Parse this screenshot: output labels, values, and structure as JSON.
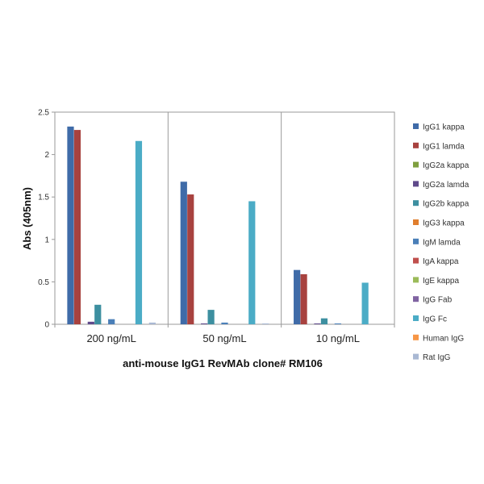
{
  "chart_data": {
    "type": "bar",
    "title": "",
    "xlabel": "anti-mouse  IgG1 RevMAb clone# RM106",
    "ylabel": "Abs (405nm)",
    "ylim": [
      0,
      2.5
    ],
    "yticks": [
      "0",
      "0.5",
      "1",
      "1.5",
      "2",
      "2.5"
    ],
    "categories": [
      "200 ng/mL",
      "50 ng/mL",
      "10 ng/mL"
    ],
    "legend_position": "right",
    "grid": false,
    "series": [
      {
        "name": "IgG1 kappa",
        "color": "#3F6BA8",
        "values": [
          2.33,
          1.68,
          0.64
        ]
      },
      {
        "name": "IgG1 lamda",
        "color": "#A8423F",
        "values": [
          2.29,
          1.53,
          0.59
        ]
      },
      {
        "name": "IgG2a kappa",
        "color": "#7F9F3F",
        "values": [
          0.0,
          0.0,
          0.0
        ]
      },
      {
        "name": "IgG2a lamda",
        "color": "#5F4A8B",
        "values": [
          0.03,
          0.01,
          0.01
        ]
      },
      {
        "name": "IgG2b kappa",
        "color": "#3D8FA0",
        "values": [
          0.23,
          0.17,
          0.07
        ]
      },
      {
        "name": "IgG3 kappa",
        "color": "#E07E2E",
        "values": [
          0.0,
          0.0,
          0.0
        ]
      },
      {
        "name": "IgM lamda",
        "color": "#4A7FB8",
        "values": [
          0.06,
          0.02,
          0.01
        ]
      },
      {
        "name": "IgA kappa",
        "color": "#C0504D",
        "values": [
          0.0,
          0.0,
          0.0
        ]
      },
      {
        "name": "IgE kappa",
        "color": "#9BBB59",
        "values": [
          0.0,
          0.0,
          0.0
        ]
      },
      {
        "name": "IgG Fab",
        "color": "#8064A2",
        "values": [
          0.0,
          0.0,
          0.0
        ]
      },
      {
        "name": "IgG Fc",
        "color": "#4BACC6",
        "values": [
          2.16,
          1.45,
          0.49
        ]
      },
      {
        "name": "Human IgG",
        "color": "#F79646",
        "values": [
          0.0,
          0.0,
          0.0
        ]
      },
      {
        "name": "Rat IgG",
        "color": "#A9B8D3",
        "values": [
          0.02,
          0.01,
          0.0
        ]
      }
    ]
  }
}
